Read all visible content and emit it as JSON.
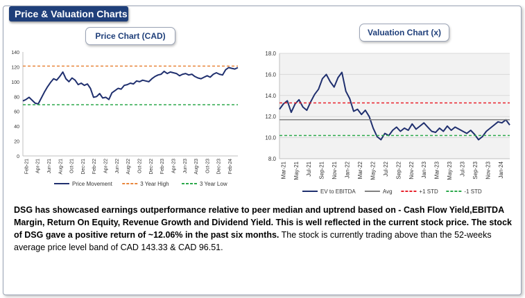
{
  "header": {
    "title": "Price & Valuation Charts"
  },
  "price_chart": {
    "title": "Price Chart (CAD)"
  },
  "valuation_chart": {
    "title": "Valuation Chart (x)"
  },
  "chart_data": [
    {
      "type": "line",
      "ylim": [
        0,
        140
      ],
      "yticks": [
        "0",
        "20",
        "40",
        "60",
        "80",
        "100",
        "120",
        "140"
      ],
      "xticks": [
        "Feb-21",
        "Apr-21",
        "Jun-21",
        "Aug-21",
        "Oct-21",
        "Dec-21",
        "Feb-22",
        "Apr-22",
        "Jun-22",
        "Aug-22",
        "Oct-22",
        "Dec-22",
        "Feb-23",
        "Apr-23",
        "Jun-23",
        "Aug-23",
        "Oct-23",
        "Dec-23",
        "Feb-24"
      ],
      "grid": false,
      "legend": "bottom",
      "series": [
        {
          "name": "Price Movement",
          "color": "#1f2f6e",
          "style": "solid",
          "values": [
            74,
            76,
            79,
            75,
            71,
            70,
            78,
            86,
            93,
            99,
            104,
            102,
            107,
            113,
            104,
            100,
            105,
            102,
            96,
            98,
            95,
            97,
            91,
            79,
            80,
            84,
            78,
            79,
            76,
            85,
            88,
            91,
            90,
            95,
            96,
            98,
            97,
            101,
            100,
            102,
            101,
            100,
            104,
            107,
            109,
            110,
            114,
            111,
            113,
            112,
            111,
            108,
            110,
            111,
            109,
            110,
            107,
            105,
            104,
            106,
            108,
            106,
            110,
            112,
            110,
            109,
            116,
            119,
            118,
            117,
            119
          ]
        },
        {
          "name": "3 Year High",
          "color": "#e9853b",
          "style": "dashed",
          "values": [
            121
          ]
        },
        {
          "name": "3 Year Low",
          "color": "#2aa84a",
          "style": "dashed",
          "values": [
            69
          ]
        }
      ]
    },
    {
      "type": "line",
      "ylim": [
        8,
        18
      ],
      "yticks": [
        "8.0",
        "10.0",
        "12.0",
        "14.0",
        "16.0",
        "18.0"
      ],
      "xticks": [
        "Mar-21",
        "May-21",
        "Jul-21",
        "Sep-21",
        "Nov-21",
        "Jan-22",
        "Mar-22",
        "May-22",
        "Jul-22",
        "Sep-22",
        "Nov-22",
        "Jan-23",
        "Mar-23",
        "May-23",
        "Jul-23",
        "Sep-23",
        "Nov-23",
        "Jan-24"
      ],
      "grid": true,
      "legend": "bottom",
      "series": [
        {
          "name": "EV to EBITDA",
          "color": "#1f2f6e",
          "style": "solid",
          "values": [
            12.7,
            13.2,
            13.5,
            12.4,
            13.2,
            13.6,
            12.9,
            12.6,
            13.4,
            14.1,
            14.6,
            15.6,
            16.0,
            15.3,
            14.8,
            15.7,
            16.2,
            14.4,
            13.7,
            12.5,
            12.7,
            12.2,
            12.6,
            12.0,
            10.9,
            10.1,
            9.8,
            10.4,
            10.2,
            10.7,
            11.0,
            10.6,
            10.9,
            10.7,
            11.3,
            10.8,
            11.1,
            11.4,
            11.0,
            10.6,
            10.5,
            10.9,
            10.6,
            11.1,
            10.7,
            11.0,
            10.8,
            10.6,
            10.4,
            10.7,
            10.3,
            9.8,
            10.1,
            10.6,
            10.9,
            11.2,
            11.5,
            11.4,
            11.7,
            11.2
          ]
        },
        {
          "name": "Avg",
          "color": "#808080",
          "style": "solid",
          "values": [
            11.7
          ]
        },
        {
          "name": "+1 STD",
          "color": "#e8202a",
          "style": "dashed",
          "values": [
            13.3
          ]
        },
        {
          "name": "-1 STD",
          "color": "#2aa84a",
          "style": "dashed",
          "values": [
            10.2
          ]
        }
      ]
    }
  ],
  "paragraph": {
    "bold": "DSG has showcased earnings outperformance relative to peer median and uptrend based on - Cash Flow Yield,EBITDA Margin, Return On Equity, Revenue Growth and Dividend Yield. This is well reflected in the current stock price. The stock of DSG gave a positive return of ~12.06% in the past six months.",
    "normal": " The stock is currently trading above than the 52-weeks average price level band of CAD 143.33 & CAD 96.51."
  }
}
